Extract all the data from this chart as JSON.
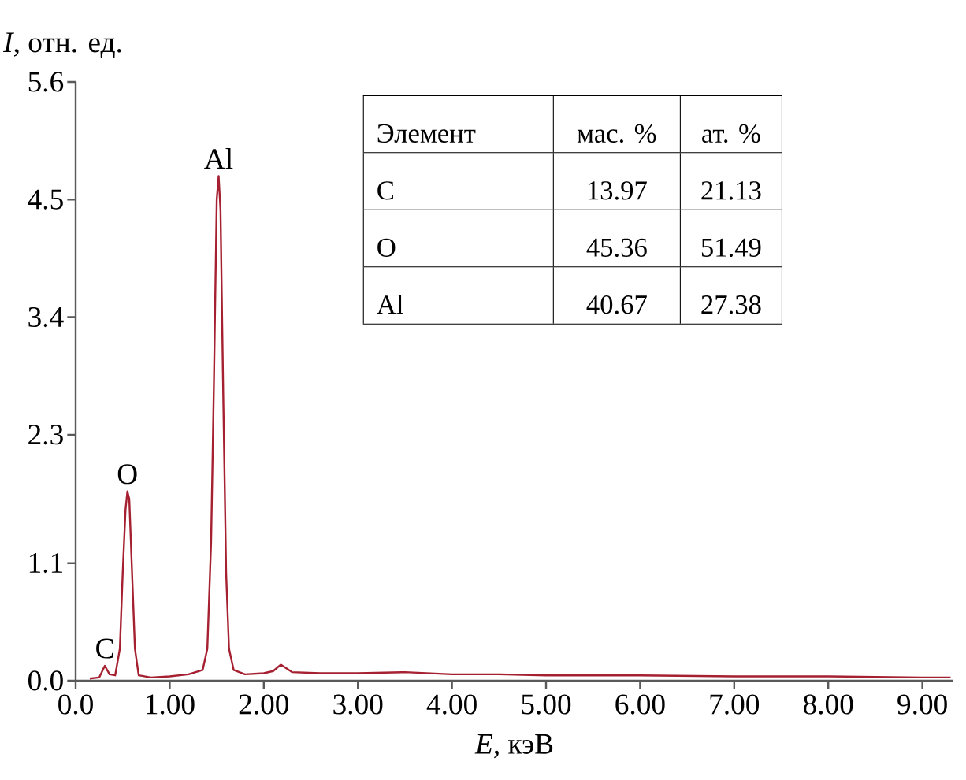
{
  "chart_data": {
    "type": "line",
    "xlabel": "*E*, кэВ",
    "ylabel": "*I*, отн. ед.",
    "color": "#a52030",
    "x": [
      0.15,
      0.25,
      0.31,
      0.36,
      0.42,
      0.47,
      0.5,
      0.53,
      0.55,
      0.57,
      0.6,
      0.63,
      0.67,
      0.8,
      1.0,
      1.2,
      1.35,
      1.4,
      1.44,
      1.47,
      1.5,
      1.52,
      1.54,
      1.57,
      1.6,
      1.63,
      1.68,
      1.8,
      2.0,
      2.1,
      2.18,
      2.3,
      2.6,
      3.0,
      3.5,
      4.0,
      4.5,
      5.0,
      6.0,
      7.0,
      8.0,
      9.0,
      9.3
    ],
    "values": [
      0.02,
      0.03,
      0.14,
      0.06,
      0.05,
      0.3,
      1.0,
      1.6,
      1.77,
      1.7,
      1.0,
      0.3,
      0.05,
      0.03,
      0.04,
      0.06,
      0.1,
      0.3,
      1.3,
      2.8,
      4.5,
      4.72,
      4.4,
      2.6,
      1.0,
      0.3,
      0.1,
      0.06,
      0.07,
      0.09,
      0.15,
      0.08,
      0.07,
      0.07,
      0.08,
      0.06,
      0.06,
      0.05,
      0.05,
      0.04,
      0.04,
      0.03,
      0.03
    ],
    "xlim": [
      0,
      9.33
    ],
    "ylim": [
      0,
      5.6
    ],
    "xticks": [
      {
        "value": 0,
        "label": "0.0"
      },
      {
        "value": 1,
        "label": "1.00"
      },
      {
        "value": 2,
        "label": "2.00"
      },
      {
        "value": 3,
        "label": "3.00"
      },
      {
        "value": 4,
        "label": "4.00"
      },
      {
        "value": 5,
        "label": "5.00"
      },
      {
        "value": 6,
        "label": "6.00"
      },
      {
        "value": 7,
        "label": "7.00"
      },
      {
        "value": 8,
        "label": "8.00"
      },
      {
        "value": 9,
        "label": "9.00"
      }
    ],
    "yticks": [
      {
        "value": 0,
        "label": "0.0"
      },
      1.1,
      2.3,
      3.4,
      4.5,
      5.6
    ],
    "annotations": [
      {
        "text": "C",
        "x": 0.31,
        "y": 0.14
      },
      {
        "text": "O",
        "x": 0.55,
        "y": 1.77
      },
      {
        "text": "Al",
        "x": 1.52,
        "y": 4.72
      },
      "Элемент",
      "мас. %",
      "ат. %",
      "C",
      "13.97",
      "21.13",
      "O",
      "45.36",
      "51.49",
      "Al",
      "40.67",
      "27.38"
    ]
  }
}
